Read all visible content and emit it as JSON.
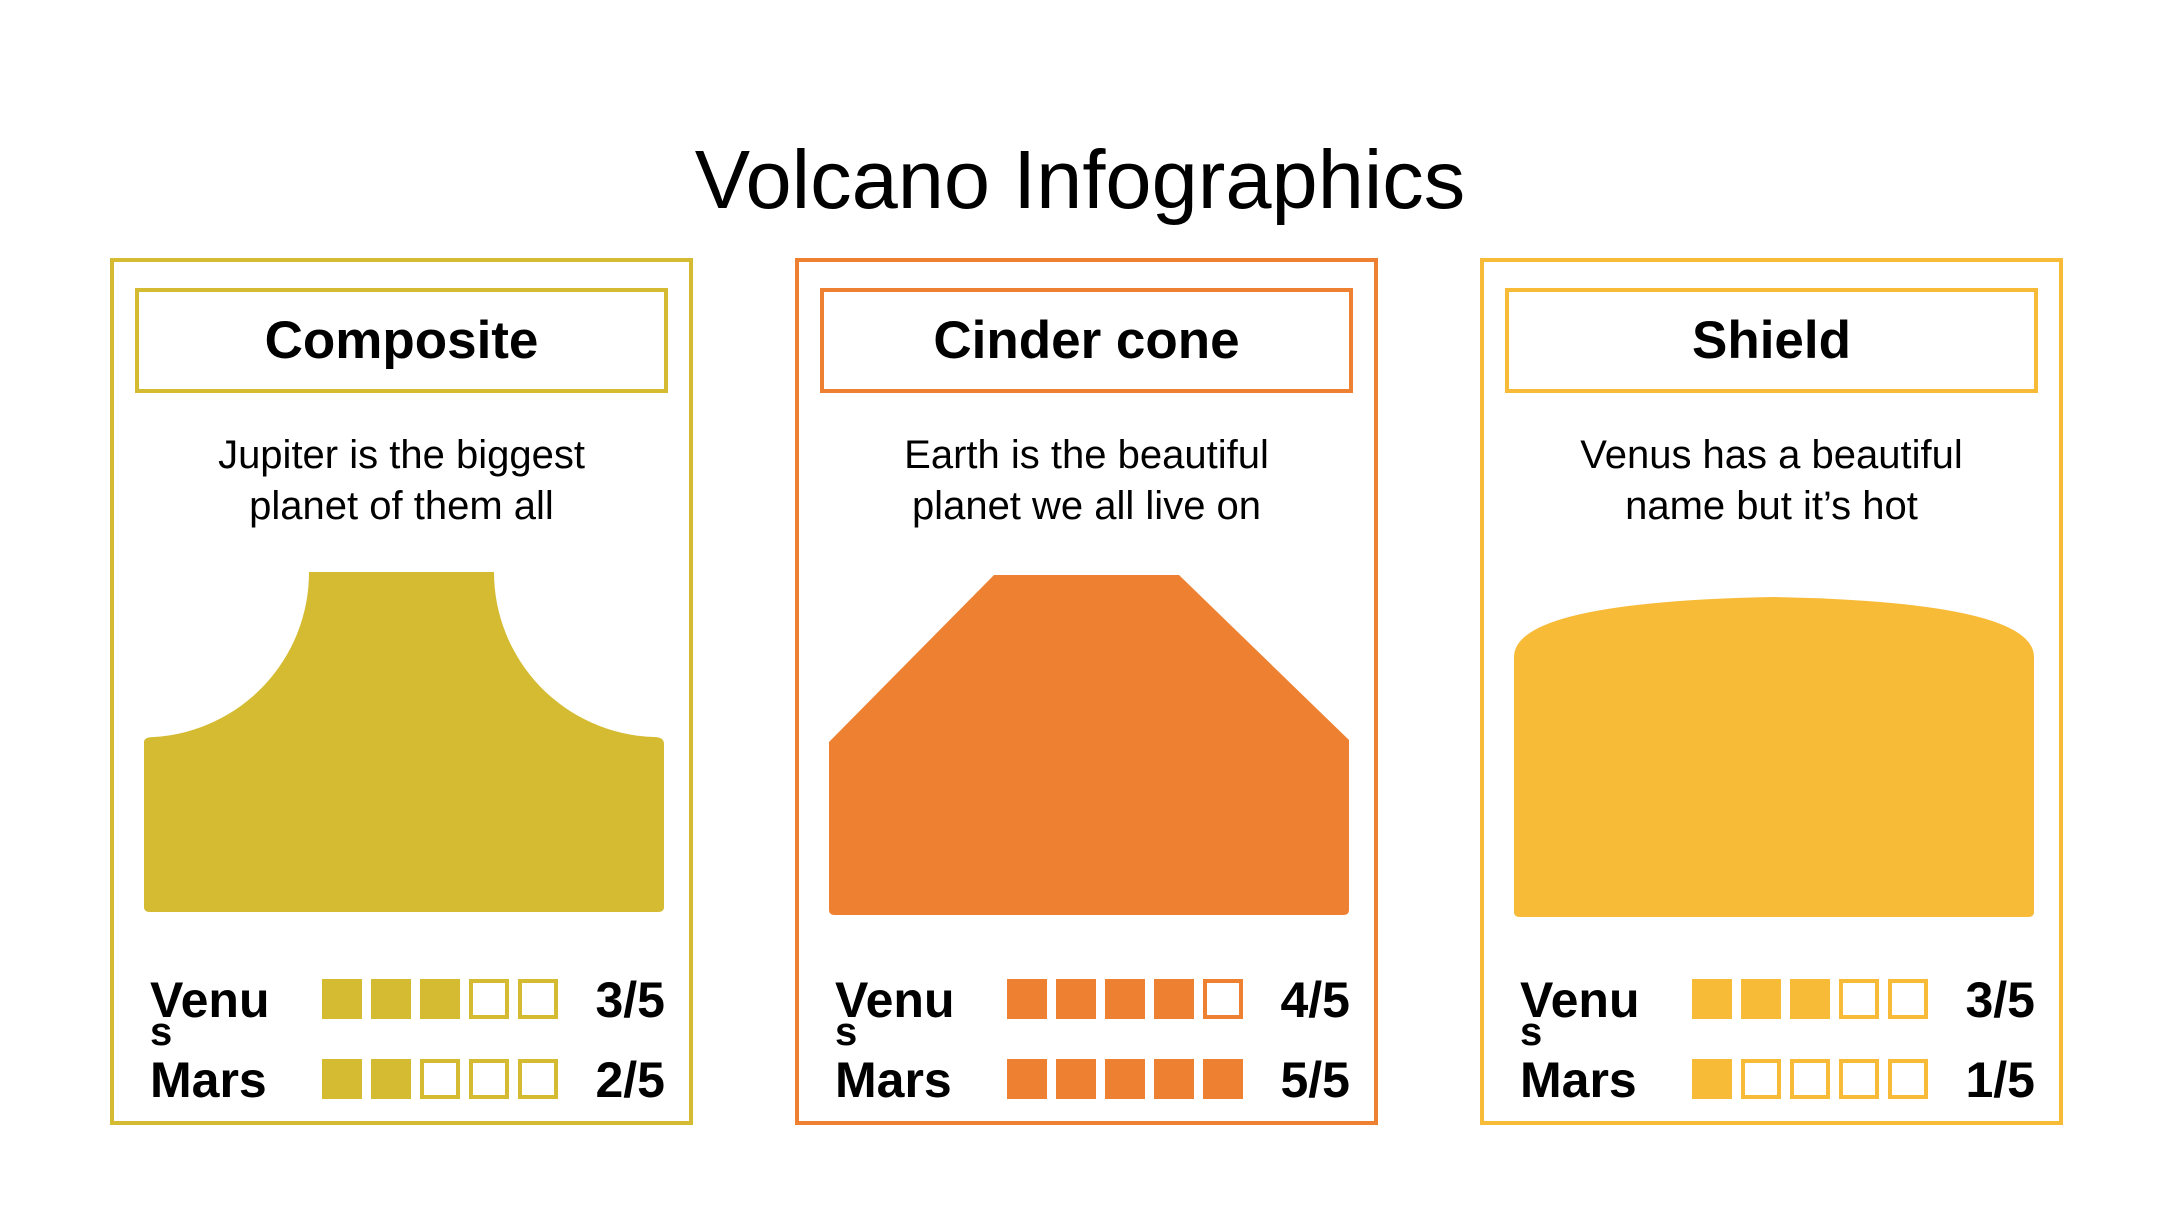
{
  "title": "Volcano Infographics",
  "cards": [
    {
      "name": "Composite",
      "description": "Jupiter is the biggest\nplanet of them all",
      "color": "#D4BB31",
      "shape": "composite",
      "ratings": [
        {
          "label": "Venu",
          "label_tail": "s",
          "score": 3,
          "max": 5,
          "text": "3/5"
        },
        {
          "label": "Mars",
          "label_tail": "",
          "score": 2,
          "max": 5,
          "text": "2/5"
        }
      ]
    },
    {
      "name": "Cinder cone",
      "description": "Earth is the beautiful\nplanet we all live on",
      "color": "#EE8131",
      "shape": "cinder-cone",
      "ratings": [
        {
          "label": "Venu",
          "label_tail": "s",
          "score": 4,
          "max": 5,
          "text": "4/5"
        },
        {
          "label": "Mars",
          "label_tail": "",
          "score": 5,
          "max": 5,
          "text": "5/5"
        }
      ]
    },
    {
      "name": "Shield",
      "description": "Venus has a beautiful\nname but it’s hot",
      "color": "#F7BB38",
      "shape": "shield",
      "ratings": [
        {
          "label": "Venu",
          "label_tail": "s",
          "score": 3,
          "max": 5,
          "text": "3/5"
        },
        {
          "label": "Mars",
          "label_tail": "",
          "score": 1,
          "max": 5,
          "text": "1/5"
        }
      ]
    }
  ]
}
